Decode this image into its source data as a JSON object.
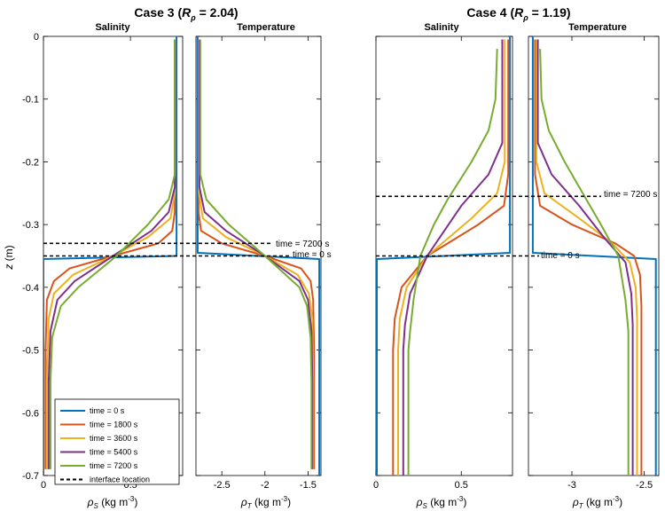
{
  "figure": {
    "case_titles": [
      {
        "prefix": "Case 3 (",
        "R": "R",
        "rho": "ρ",
        "suffix": " = 2.04)"
      },
      {
        "prefix": "Case 4 (",
        "R": "R",
        "rho": "ρ",
        "suffix": " = 1.19)"
      }
    ],
    "ylabel": {
      "z": "z",
      "unit": " (m)"
    },
    "xlabels": {
      "salinity": {
        "rho": "ρ",
        "sub": "S",
        "unit": " (kg m",
        "exp": "-3",
        "close": ")"
      },
      "temperature": {
        "rho": "ρ",
        "sub": "T",
        "unit": " (kg m",
        "exp": "-3",
        "close": ")"
      }
    }
  },
  "colors": {
    "t0": "#0072BD",
    "t1800": "#D95319",
    "t3600": "#EDB120",
    "t5400": "#7E2F8E",
    "t7200": "#77AC30",
    "interface": "#000000"
  },
  "legend": {
    "entries": [
      {
        "label": "time = 0 s",
        "color": "#0072BD",
        "dashed": false
      },
      {
        "label": "time = 1800 s",
        "color": "#D95319",
        "dashed": false
      },
      {
        "label": "time = 3600 s",
        "color": "#EDB120",
        "dashed": false
      },
      {
        "label": "time = 5400 s",
        "color": "#7E2F8E",
        "dashed": false
      },
      {
        "label": "time = 7200 s",
        "color": "#77AC30",
        "dashed": false
      },
      {
        "label": "interface location",
        "color": "#000000",
        "dashed": true
      }
    ]
  },
  "chart_data": [
    {
      "type": "line",
      "case": "Case 3",
      "title": "Salinity",
      "xlim": [
        0,
        0.8
      ],
      "ylim": [
        -0.7,
        0
      ],
      "xticks": [
        0,
        0.5
      ],
      "xtick_labels": [
        "0",
        "0.5"
      ],
      "yticks": [
        0,
        -0.1,
        -0.2,
        -0.3,
        -0.4,
        -0.5,
        -0.6,
        -0.7
      ],
      "ytick_labels": [
        "0",
        "-0.1",
        "-0.2",
        "-0.3",
        "-0.4",
        "-0.5",
        "-0.6",
        "-0.7"
      ],
      "series": [
        {
          "name": "time = 0 s",
          "z": [
            0,
            -0.35,
            -0.355,
            -0.7
          ],
          "x": [
            0.765,
            0.765,
            0,
            0
          ]
        },
        {
          "name": "time = 1800 s",
          "z": [
            -0.005,
            -0.28,
            -0.31,
            -0.33,
            -0.35,
            -0.37,
            -0.39,
            -0.42,
            -0.5,
            -0.6,
            -0.69
          ],
          "x": [
            0.755,
            0.755,
            0.74,
            0.66,
            0.4,
            0.15,
            0.06,
            0.02,
            0.012,
            0.012,
            0.012
          ]
        },
        {
          "name": "time = 3600 s",
          "z": [
            -0.005,
            -0.25,
            -0.29,
            -0.32,
            -0.35,
            -0.38,
            -0.41,
            -0.45,
            -0.55,
            -0.69
          ],
          "x": [
            0.755,
            0.755,
            0.73,
            0.6,
            0.4,
            0.17,
            0.06,
            0.03,
            0.02,
            0.02
          ]
        },
        {
          "name": "time = 5400 s",
          "z": [
            -0.005,
            -0.24,
            -0.28,
            -0.31,
            -0.35,
            -0.39,
            -0.42,
            -0.47,
            -0.55,
            -0.69
          ],
          "x": [
            0.755,
            0.755,
            0.72,
            0.62,
            0.4,
            0.18,
            0.08,
            0.04,
            0.03,
            0.03
          ]
        },
        {
          "name": "time = 7200 s",
          "z": [
            -0.005,
            -0.22,
            -0.26,
            -0.3,
            -0.35,
            -0.4,
            -0.43,
            -0.48,
            -0.55,
            -0.69
          ],
          "x": [
            0.755,
            0.755,
            0.72,
            0.6,
            0.42,
            0.2,
            0.1,
            0.05,
            0.04,
            0.04
          ]
        }
      ]
    },
    {
      "type": "line",
      "case": "Case 3",
      "title": "Temperature",
      "xlim": [
        -2.8,
        -1.35
      ],
      "ylim": [
        -0.7,
        0
      ],
      "xticks": [
        -2.5,
        -2,
        -1.5
      ],
      "xtick_labels": [
        "-2.5",
        "-2",
        "-1.5"
      ],
      "series": [
        {
          "name": "time = 0 s",
          "z": [
            0,
            -0.345,
            -0.355,
            -0.7
          ],
          "x": [
            -2.78,
            -2.78,
            -1.37,
            -1.37
          ]
        },
        {
          "name": "time = 1800 s",
          "z": [
            -0.005,
            -0.28,
            -0.31,
            -0.33,
            -0.35,
            -0.37,
            -0.39,
            -0.42,
            -0.5,
            -0.69
          ],
          "x": [
            -2.77,
            -2.77,
            -2.74,
            -2.5,
            -2.0,
            -1.58,
            -1.47,
            -1.44,
            -1.43,
            -1.43
          ]
        },
        {
          "name": "time = 3600 s",
          "z": [
            -0.005,
            -0.25,
            -0.29,
            -0.32,
            -0.35,
            -0.38,
            -0.41,
            -0.45,
            -0.55,
            -0.69
          ],
          "x": [
            -2.765,
            -2.765,
            -2.72,
            -2.45,
            -2.0,
            -1.62,
            -1.49,
            -1.45,
            -1.44,
            -1.44
          ]
        },
        {
          "name": "time = 5400 s",
          "z": [
            -0.005,
            -0.24,
            -0.28,
            -0.31,
            -0.35,
            -0.39,
            -0.42,
            -0.47,
            -0.55,
            -0.69
          ],
          "x": [
            -2.76,
            -2.76,
            -2.7,
            -2.45,
            -2.0,
            -1.6,
            -1.5,
            -1.46,
            -1.45,
            -1.45
          ]
        },
        {
          "name": "time = 7200 s",
          "z": [
            -0.005,
            -0.22,
            -0.26,
            -0.3,
            -0.35,
            -0.4,
            -0.43,
            -0.48,
            -0.55,
            -0.69
          ],
          "x": [
            -2.75,
            -2.75,
            -2.68,
            -2.42,
            -2.0,
            -1.6,
            -1.51,
            -1.47,
            -1.46,
            -1.46
          ]
        }
      ],
      "interfaces": [
        {
          "label": "time = 7200 s",
          "z": -0.33
        },
        {
          "label": "time = 0 s",
          "z": -0.35
        }
      ]
    },
    {
      "type": "line",
      "case": "Case 4",
      "title": "Salinity",
      "xlim": [
        0,
        0.8
      ],
      "ylim": [
        -0.7,
        0
      ],
      "xticks": [
        0,
        0.5
      ],
      "xtick_labels": [
        "0",
        "0.5"
      ],
      "series": [
        {
          "name": "time = 0 s",
          "z": [
            0,
            -0.345,
            -0.355,
            -0.7
          ],
          "x": [
            0.785,
            0.785,
            0.005,
            0.005
          ]
        },
        {
          "name": "time = 1800 s",
          "z": [
            -0.005,
            -0.22,
            -0.27,
            -0.3,
            -0.35,
            -0.4,
            -0.45,
            -0.5,
            -0.7
          ],
          "x": [
            0.775,
            0.775,
            0.75,
            0.6,
            0.3,
            0.15,
            0.11,
            0.1,
            0.1
          ]
        },
        {
          "name": "time = 3600 s",
          "z": [
            -0.005,
            -0.2,
            -0.25,
            -0.29,
            -0.35,
            -0.4,
            -0.45,
            -0.5,
            -0.7
          ],
          "x": [
            0.755,
            0.755,
            0.71,
            0.56,
            0.3,
            0.18,
            0.14,
            0.13,
            0.13
          ]
        },
        {
          "name": "time = 5400 s",
          "z": [
            -0.005,
            -0.17,
            -0.22,
            -0.27,
            -0.35,
            -0.41,
            -0.46,
            -0.5,
            -0.7
          ],
          "x": [
            0.74,
            0.74,
            0.66,
            0.5,
            0.3,
            0.2,
            0.17,
            0.16,
            0.16
          ]
        },
        {
          "name": "time = 7200 s",
          "z": [
            -0.02,
            -0.1,
            -0.15,
            -0.2,
            -0.26,
            -0.3,
            -0.35,
            -0.42,
            -0.47,
            -0.5,
            -0.7
          ],
          "x": [
            0.71,
            0.7,
            0.66,
            0.56,
            0.42,
            0.34,
            0.26,
            0.22,
            0.2,
            0.19,
            0.19
          ]
        }
      ]
    },
    {
      "type": "line",
      "case": "Case 4",
      "title": "Temperature",
      "xlim": [
        -3.3,
        -2.4
      ],
      "ylim": [
        -0.7,
        0
      ],
      "xticks": [
        -3,
        -2.5
      ],
      "xtick_labels": [
        "-3",
        "-2.5"
      ],
      "series": [
        {
          "name": "time = 0 s",
          "z": [
            0,
            -0.345,
            -0.355,
            -0.7
          ],
          "x": [
            -3.27,
            -3.27,
            -2.42,
            -2.42
          ]
        },
        {
          "name": "time = 1800 s",
          "z": [
            -0.005,
            -0.22,
            -0.27,
            -0.3,
            -0.33,
            -0.35,
            -0.38,
            -0.43,
            -0.5,
            -0.7
          ],
          "x": [
            -3.255,
            -3.255,
            -3.22,
            -3.0,
            -2.7,
            -2.57,
            -2.53,
            -2.52,
            -2.52,
            -2.52
          ]
        },
        {
          "name": "time = 3600 s",
          "z": [
            -0.005,
            -0.2,
            -0.25,
            -0.29,
            -0.33,
            -0.36,
            -0.4,
            -0.45,
            -0.5,
            -0.7
          ],
          "x": [
            -3.245,
            -3.245,
            -3.19,
            -2.95,
            -2.72,
            -2.6,
            -2.56,
            -2.55,
            -2.55,
            -2.55
          ]
        },
        {
          "name": "time = 5400 s",
          "z": [
            -0.005,
            -0.17,
            -0.22,
            -0.27,
            -0.32,
            -0.36,
            -0.41,
            -0.46,
            -0.5,
            -0.7
          ],
          "x": [
            -3.235,
            -3.235,
            -3.14,
            -2.95,
            -2.78,
            -2.63,
            -2.59,
            -2.58,
            -2.58,
            -2.58
          ]
        },
        {
          "name": "time = 7200 s",
          "z": [
            -0.02,
            -0.1,
            -0.15,
            -0.2,
            -0.26,
            -0.3,
            -0.35,
            -0.42,
            -0.47,
            -0.5,
            -0.7
          ],
          "x": [
            -3.22,
            -3.21,
            -3.16,
            -3.05,
            -2.9,
            -2.8,
            -2.68,
            -2.63,
            -2.61,
            -2.61,
            -2.61
          ]
        }
      ],
      "interfaces": [
        {
          "label": "time = 7200 s",
          "z": -0.255
        },
        {
          "label": "time = 0 s",
          "z": -0.35
        }
      ]
    }
  ]
}
